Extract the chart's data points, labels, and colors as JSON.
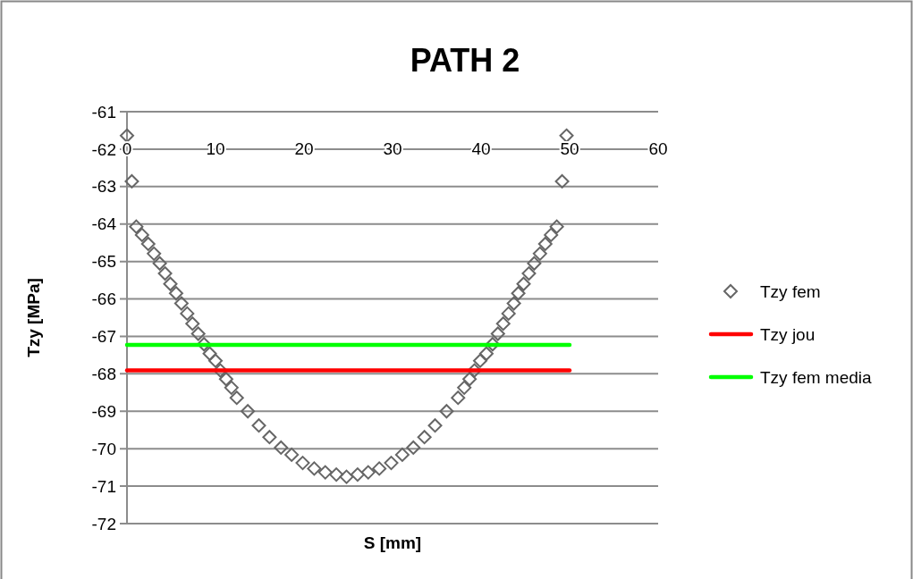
{
  "chart_data": {
    "type": "scatter",
    "title": "PATH 2",
    "xlabel": "S [mm]",
    "ylabel": "Tzy [MPa]",
    "xlim": [
      0,
      60
    ],
    "xticks": [
      0,
      10,
      20,
      30,
      40,
      50,
      60
    ],
    "ylim": [
      -72,
      -61
    ],
    "yticks": [
      -72,
      -71,
      -70,
      -69,
      -68,
      -67,
      -66,
      -65,
      -64,
      -63,
      -62,
      -61
    ],
    "grid": "y",
    "legend": "right",
    "series": [
      {
        "name": "Tzy fem",
        "marker": "diamond",
        "color": "#666666",
        "x": [
          0,
          0.55,
          1.05,
          1.7,
          2.4,
          3.05,
          3.7,
          4.3,
          4.9,
          5.55,
          6.15,
          6.8,
          7.4,
          8.05,
          8.7,
          9.35,
          10,
          10.55,
          11.2,
          11.8,
          12.4,
          13.65,
          14.9,
          16.1,
          17.4,
          18.6,
          19.85,
          21.15,
          22.4,
          23.65,
          24.8,
          26.05,
          27.25,
          28.5,
          29.85,
          31.1,
          32.35,
          33.6,
          34.8,
          36.1,
          37.4,
          38.1,
          38.7,
          39.25,
          39.9,
          40.6,
          41.3,
          41.9,
          42.5,
          43.1,
          43.7,
          44.2,
          44.8,
          45.4,
          46,
          46.65,
          47.25,
          47.9,
          48.55,
          49.15,
          49.65
        ],
        "values": [
          -61.64,
          -62.86,
          -64.07,
          -64.29,
          -64.53,
          -64.79,
          -65.05,
          -65.32,
          -65.6,
          -65.85,
          -66.12,
          -66.39,
          -66.66,
          -66.93,
          -67.21,
          -67.46,
          -67.65,
          -67.91,
          -68.14,
          -68.37,
          -68.64,
          -69,
          -69.38,
          -69.69,
          -69.97,
          -70.16,
          -70.38,
          -70.53,
          -70.63,
          -70.69,
          -70.75,
          -70.69,
          -70.63,
          -70.53,
          -70.38,
          -70.16,
          -69.97,
          -69.69,
          -69.38,
          -69,
          -68.64,
          -68.37,
          -68.14,
          -67.91,
          -67.65,
          -67.46,
          -67.21,
          -66.93,
          -66.66,
          -66.39,
          -66.12,
          -65.85,
          -65.6,
          -65.32,
          -65.05,
          -64.79,
          -64.53,
          -64.29,
          -64.07,
          -62.86,
          -61.64
        ]
      },
      {
        "name": "Tzy jou",
        "type": "line",
        "marker": "none",
        "color": "#ff0000",
        "x": [
          0,
          50
        ],
        "values": [
          -67.91,
          -67.91
        ]
      },
      {
        "name": "Tzy fem media",
        "type": "line",
        "marker": "none",
        "color": "#00ff00",
        "x": [
          0,
          50
        ],
        "values": [
          -67.23,
          -67.23
        ]
      }
    ]
  }
}
